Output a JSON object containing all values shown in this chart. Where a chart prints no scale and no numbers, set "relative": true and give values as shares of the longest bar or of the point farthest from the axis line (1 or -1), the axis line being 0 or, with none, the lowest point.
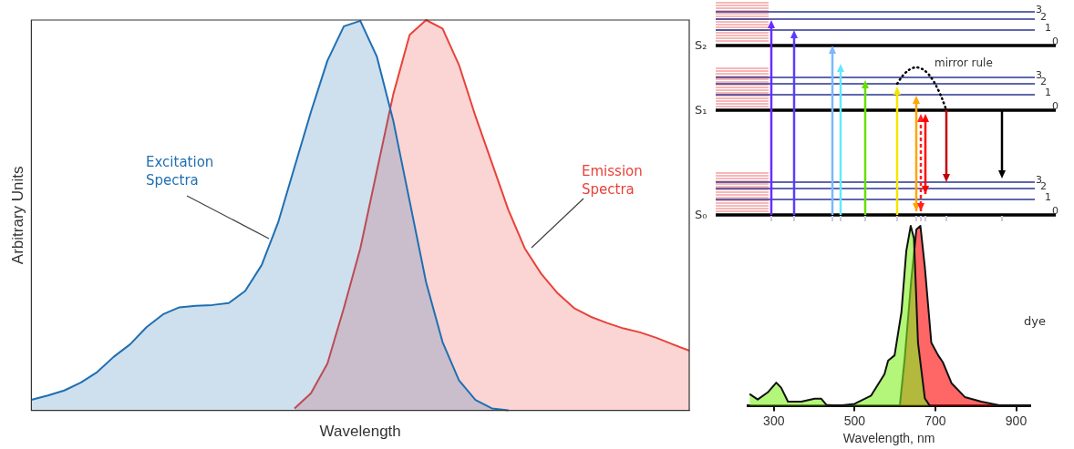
{
  "chart_data": [
    {
      "type": "area",
      "xlabel": "Wavelength",
      "ylabel": "Arbitrary Units",
      "relative": true,
      "tick_labels": false,
      "categories": [
        null,
        null,
        null,
        null,
        null,
        null,
        null,
        null,
        null,
        null,
        null,
        null,
        null,
        null,
        null,
        null,
        null,
        null,
        null,
        null,
        null,
        null,
        null,
        null,
        null,
        null,
        null,
        null,
        null,
        null,
        null,
        null,
        null,
        null,
        null,
        null,
        null,
        null,
        null,
        null,
        null
      ],
      "series": [
        {
          "name": "Excitation Spectra",
          "color": "#1f6fb2",
          "values": [
            0.027,
            0.038,
            0.051,
            0.071,
            0.098,
            0.137,
            0.169,
            0.213,
            0.246,
            0.264,
            0.268,
            0.27,
            0.275,
            0.306,
            0.372,
            0.481,
            0.623,
            0.765,
            0.896,
            0.984,
            0.998,
            0.907,
            0.743,
            0.536,
            0.328,
            0.175,
            0.077,
            0.027,
            0.005,
            0,
            null,
            null,
            null,
            null,
            null,
            null,
            null,
            null,
            null,
            null,
            null
          ]
        },
        {
          "name": "Emission Spectra",
          "color": "#e8423a",
          "values": [
            null,
            null,
            null,
            null,
            null,
            null,
            null,
            null,
            null,
            null,
            null,
            null,
            null,
            null,
            null,
            null,
            0.005,
            0.044,
            0.12,
            0.262,
            0.415,
            0.612,
            0.809,
            0.962,
            1.0,
            0.978,
            0.885,
            0.754,
            0.634,
            0.514,
            0.415,
            0.35,
            0.3,
            0.262,
            0.24,
            0.224,
            0.21,
            0.2,
            0.186,
            0.169,
            0.153
          ]
        }
      ]
    },
    {
      "type": "area",
      "xlabel": "Wavelength, nm",
      "relative": true,
      "tick_labels": "x",
      "xlim": [
        235,
        935
      ],
      "xticks": [
        300,
        500,
        700,
        900
      ],
      "annotations": [
        "S₂",
        "S₁",
        "S₀",
        "0",
        "1",
        "2",
        "3",
        "mirror rule",
        "dye"
      ],
      "series": [
        {
          "color": "#80f020",
          "x": [
            240,
            260,
            285,
            306,
            318,
            335,
            368,
            401,
            417,
            430,
            459,
            500,
            541,
            574,
            583,
            599,
            616,
            628,
            639,
            647,
            657,
            674,
            686
          ],
          "values": [
            0.065,
            0.034,
            0.074,
            0.128,
            0.1,
            0.022,
            0.022,
            0.039,
            0.039,
            0.005,
            0,
            0.01,
            0.056,
            0.176,
            0.25,
            0.28,
            0.52,
            0.86,
            1.0,
            0.93,
            0.35,
            0.04,
            0
          ]
        },
        {
          "color": "#ff0000",
          "x": [
            612,
            624,
            640,
            653,
            663,
            674,
            690,
            707,
            719,
            740,
            773,
            814,
            864
          ],
          "values": [
            0,
            0.26,
            0.69,
            0.98,
            1.0,
            0.77,
            0.35,
            0.28,
            0.24,
            0.125,
            0.048,
            0.022,
            0
          ]
        }
      ]
    }
  ]
}
